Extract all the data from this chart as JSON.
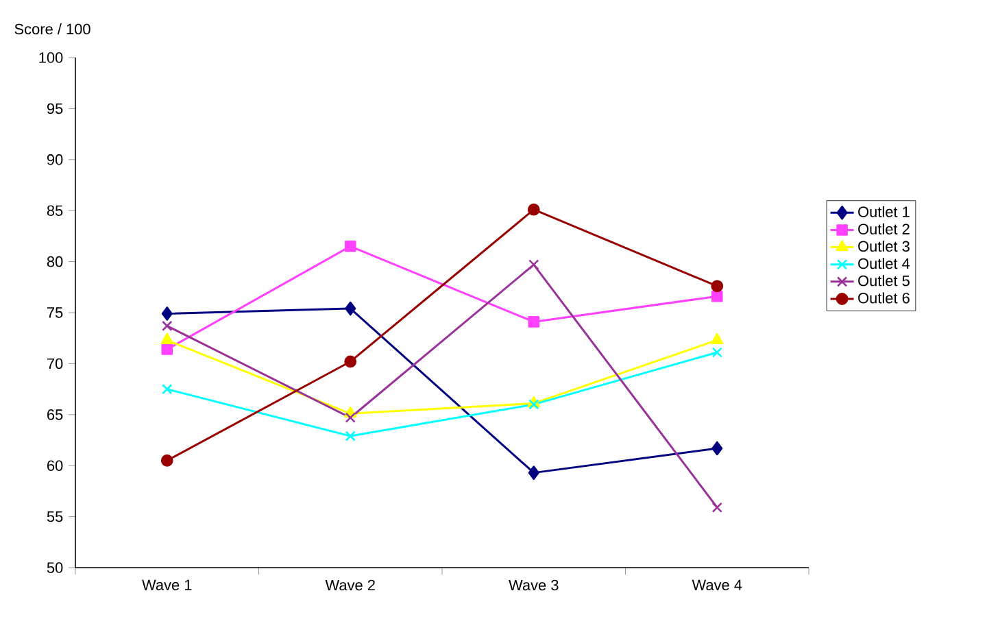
{
  "chart_data": {
    "type": "line",
    "ylabel": "Score / 100",
    "categories": [
      "Wave 1",
      "Wave 2",
      "Wave 3",
      "Wave 4"
    ],
    "series": [
      {
        "name": "Outlet 1",
        "color": "#000080",
        "marker": "diamond",
        "values": [
          74.9,
          75.4,
          59.3,
          61.7
        ]
      },
      {
        "name": "Outlet 2",
        "color": "#ff40ff",
        "marker": "square",
        "values": [
          71.4,
          81.5,
          74.1,
          76.6
        ]
      },
      {
        "name": "Outlet 3",
        "color": "#ffff00",
        "marker": "triangle",
        "values": [
          72.3,
          65.1,
          66.1,
          72.3
        ]
      },
      {
        "name": "Outlet 4",
        "color": "#00ffff",
        "marker": "cross",
        "values": [
          67.5,
          62.9,
          66.0,
          71.1
        ]
      },
      {
        "name": "Outlet 5",
        "color": "#993399",
        "marker": "cross",
        "values": [
          73.7,
          64.7,
          79.7,
          55.9
        ]
      },
      {
        "name": "Outlet 6",
        "color": "#990000",
        "marker": "circle",
        "values": [
          60.5,
          70.2,
          85.1,
          77.6
        ]
      }
    ],
    "ylim": [
      50,
      100
    ],
    "yticks": [
      50,
      55,
      60,
      65,
      70,
      75,
      80,
      85,
      90,
      95,
      100
    ],
    "grid": false,
    "legend": "right",
    "line_style": "solid"
  }
}
